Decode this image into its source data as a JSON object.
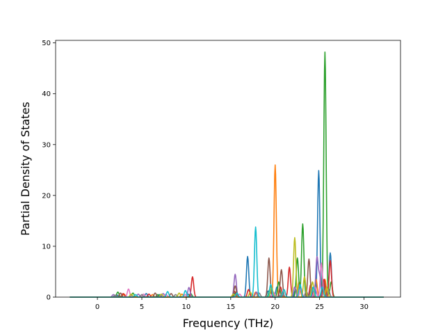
{
  "chart_data": {
    "type": "line",
    "title": "",
    "xlabel": "Frequency (THz)",
    "ylabel": "Partial Density of States",
    "xlim": [
      -4.7,
      34.1
    ],
    "ylim": [
      0,
      50.5
    ],
    "xticks": [
      0,
      5,
      10,
      15,
      20,
      25,
      30
    ],
    "yticks": [
      0,
      10,
      20,
      30,
      40,
      50
    ],
    "grid": false,
    "legend": "none",
    "x_range_of_data": [
      -3.1,
      32.2
    ],
    "series": [
      {
        "color": "#1f77b4",
        "peaks": [
          [
            2.2,
            0.4
          ],
          [
            5.5,
            0.7
          ],
          [
            7.0,
            0.5
          ],
          [
            10.2,
            0.6
          ],
          [
            15.4,
            0.8
          ],
          [
            16.9,
            8.0
          ],
          [
            19.2,
            1.2
          ],
          [
            20.2,
            2.0
          ],
          [
            22.3,
            1.5
          ],
          [
            24.1,
            2.0
          ],
          [
            24.9,
            24.9
          ],
          [
            25.5,
            3.0
          ],
          [
            26.2,
            8.7
          ]
        ]
      },
      {
        "color": "#ff7f0e",
        "peaks": [
          [
            3.0,
            0.6
          ],
          [
            6.2,
            0.5
          ],
          [
            9.5,
            0.6
          ],
          [
            15.5,
            0.6
          ],
          [
            17.8,
            1.0
          ],
          [
            20.0,
            26.0
          ],
          [
            22.7,
            3.0
          ],
          [
            24.6,
            3.5
          ],
          [
            25.6,
            3.5
          ]
        ]
      },
      {
        "color": "#2ca02c",
        "peaks": [
          [
            2.3,
            1.0
          ],
          [
            4.0,
            0.8
          ],
          [
            6.8,
            0.5
          ],
          [
            10.5,
            0.7
          ],
          [
            15.6,
            1.0
          ],
          [
            19.4,
            1.5
          ],
          [
            20.4,
            3.0
          ],
          [
            22.5,
            7.7
          ],
          [
            23.1,
            14.4
          ],
          [
            25.6,
            48.2
          ],
          [
            26.3,
            3.0
          ]
        ]
      },
      {
        "color": "#d62728",
        "peaks": [
          [
            2.9,
            0.7
          ],
          [
            5.8,
            0.6
          ],
          [
            10.7,
            4.0
          ],
          [
            15.4,
            1.2
          ],
          [
            17.0,
            1.5
          ],
          [
            20.6,
            2.0
          ],
          [
            21.6,
            5.9
          ],
          [
            24.0,
            2.5
          ],
          [
            25.5,
            3.5
          ],
          [
            26.2,
            7.2
          ]
        ]
      },
      {
        "color": "#9467bd",
        "peaks": [
          [
            1.8,
            0.5
          ],
          [
            4.6,
            0.6
          ],
          [
            7.4,
            0.7
          ],
          [
            10.3,
            1.9
          ],
          [
            15.5,
            4.5
          ],
          [
            17.9,
            1.0
          ],
          [
            22.2,
            2.0
          ],
          [
            24.7,
            7.7
          ],
          [
            25.0,
            4.0
          ]
        ]
      },
      {
        "color": "#8c564b",
        "peaks": [
          [
            2.6,
            0.8
          ],
          [
            6.5,
            0.8
          ],
          [
            8.3,
            0.7
          ],
          [
            15.5,
            2.2
          ],
          [
            19.3,
            7.7
          ],
          [
            20.7,
            5.4
          ],
          [
            23.8,
            7.5
          ],
          [
            25.4,
            3.0
          ]
        ]
      },
      {
        "color": "#e377c2",
        "peaks": [
          [
            3.5,
            1.6
          ],
          [
            5.2,
            0.6
          ],
          [
            7.7,
            0.6
          ],
          [
            9.9,
            0.5
          ],
          [
            16.0,
            0.6
          ],
          [
            19.8,
            1.0
          ],
          [
            22.9,
            1.8
          ],
          [
            24.5,
            2.0
          ],
          [
            25.2,
            6.7
          ]
        ]
      },
      {
        "color": "#7f7f7f",
        "peaks": [
          [
            2.0,
            0.4
          ],
          [
            5.0,
            0.5
          ],
          [
            8.8,
            0.5
          ],
          [
            15.6,
            0.5
          ],
          [
            18.2,
            0.8
          ],
          [
            20.8,
            1.0
          ],
          [
            23.5,
            1.2
          ],
          [
            26.0,
            1.5
          ]
        ]
      },
      {
        "color": "#bcbd22",
        "peaks": [
          [
            3.8,
            0.6
          ],
          [
            7.2,
            0.6
          ],
          [
            9.2,
            0.8
          ],
          [
            15.3,
            0.6
          ],
          [
            17.2,
            1.0
          ],
          [
            19.6,
            2.0
          ],
          [
            22.2,
            11.7
          ],
          [
            23.3,
            4.0
          ],
          [
            24.2,
            3.0
          ],
          [
            25.8,
            2.0
          ]
        ]
      },
      {
        "color": "#17becf",
        "peaks": [
          [
            4.3,
            0.5
          ],
          [
            7.9,
            1.1
          ],
          [
            9.9,
            1.3
          ],
          [
            15.7,
            0.8
          ],
          [
            17.8,
            13.8
          ],
          [
            19.5,
            2.5
          ],
          [
            21.0,
            1.5
          ],
          [
            22.8,
            2.5
          ],
          [
            24.3,
            2.0
          ],
          [
            25.3,
            2.0
          ]
        ]
      }
    ]
  }
}
